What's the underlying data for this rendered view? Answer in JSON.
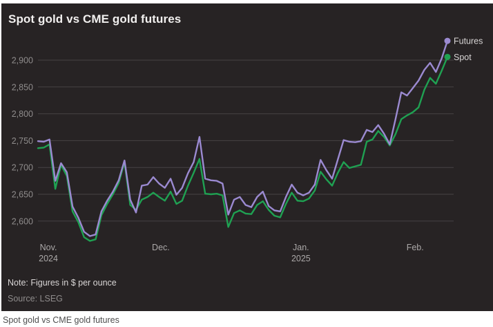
{
  "page": {
    "caption": "Spot gold vs CME gold futures"
  },
  "panel": {
    "title": "Spot gold vs CME gold futures",
    "note": "Note: Figures in $ per ounce",
    "source": "Source: LSEG",
    "background": "#272324"
  },
  "chart_data": {
    "type": "line",
    "title": "Spot gold vs CME gold futures",
    "unit": "$ per ounce",
    "grid": true,
    "legend_position": "line-end",
    "ylim": [
      2555,
      2945
    ],
    "yticks": [
      2600,
      2650,
      2700,
      2750,
      2800,
      2850,
      2900
    ],
    "ytick_labels": [
      "2,600",
      "2,650",
      "2,700",
      "2,750",
      "2,800",
      "2,850",
      "2,900"
    ],
    "x_ticks": [
      {
        "label": "Nov.",
        "sub": "2024",
        "index": 1.8
      },
      {
        "label": "Dec.",
        "sub": "",
        "index": 21.3
      },
      {
        "label": "Jan.",
        "sub": "2025",
        "index": 45.6
      },
      {
        "label": "Feb.",
        "sub": "",
        "index": 65.4
      }
    ],
    "series": [
      {
        "name": "Spot",
        "color": "#1fa152",
        "values": [
          2736,
          2737,
          2743,
          2660,
          2705,
          2684,
          2618,
          2598,
          2570,
          2563,
          2566,
          2611,
          2632,
          2650,
          2671,
          2710,
          2630,
          2621,
          2640,
          2645,
          2653,
          2645,
          2638,
          2655,
          2632,
          2638,
          2666,
          2690,
          2716,
          2651,
          2650,
          2651,
          2648,
          2589,
          2615,
          2620,
          2614,
          2613,
          2630,
          2637,
          2621,
          2610,
          2607,
          2632,
          2653,
          2638,
          2637,
          2642,
          2657,
          2692,
          2678,
          2666,
          2690,
          2710,
          2699,
          2702,
          2705,
          2748,
          2752,
          2768,
          2757,
          2741,
          2762,
          2790,
          2797,
          2803,
          2812,
          2845,
          2867,
          2856,
          2880,
          2906
        ]
      },
      {
        "name": "Futures",
        "color": "#9b8ad1",
        "values": [
          2749,
          2748,
          2752,
          2675,
          2708,
          2691,
          2627,
          2606,
          2580,
          2572,
          2575,
          2618,
          2638,
          2655,
          2676,
          2713,
          2640,
          2616,
          2666,
          2668,
          2682,
          2670,
          2662,
          2679,
          2649,
          2662,
          2689,
          2710,
          2757,
          2679,
          2676,
          2675,
          2670,
          2612,
          2640,
          2645,
          2630,
          2626,
          2645,
          2655,
          2628,
          2620,
          2618,
          2645,
          2668,
          2653,
          2648,
          2653,
          2668,
          2714,
          2695,
          2679,
          2715,
          2751,
          2748,
          2747,
          2749,
          2770,
          2766,
          2779,
          2763,
          2743,
          2790,
          2840,
          2834,
          2848,
          2862,
          2882,
          2895,
          2878,
          2903,
          2936
        ]
      }
    ]
  }
}
